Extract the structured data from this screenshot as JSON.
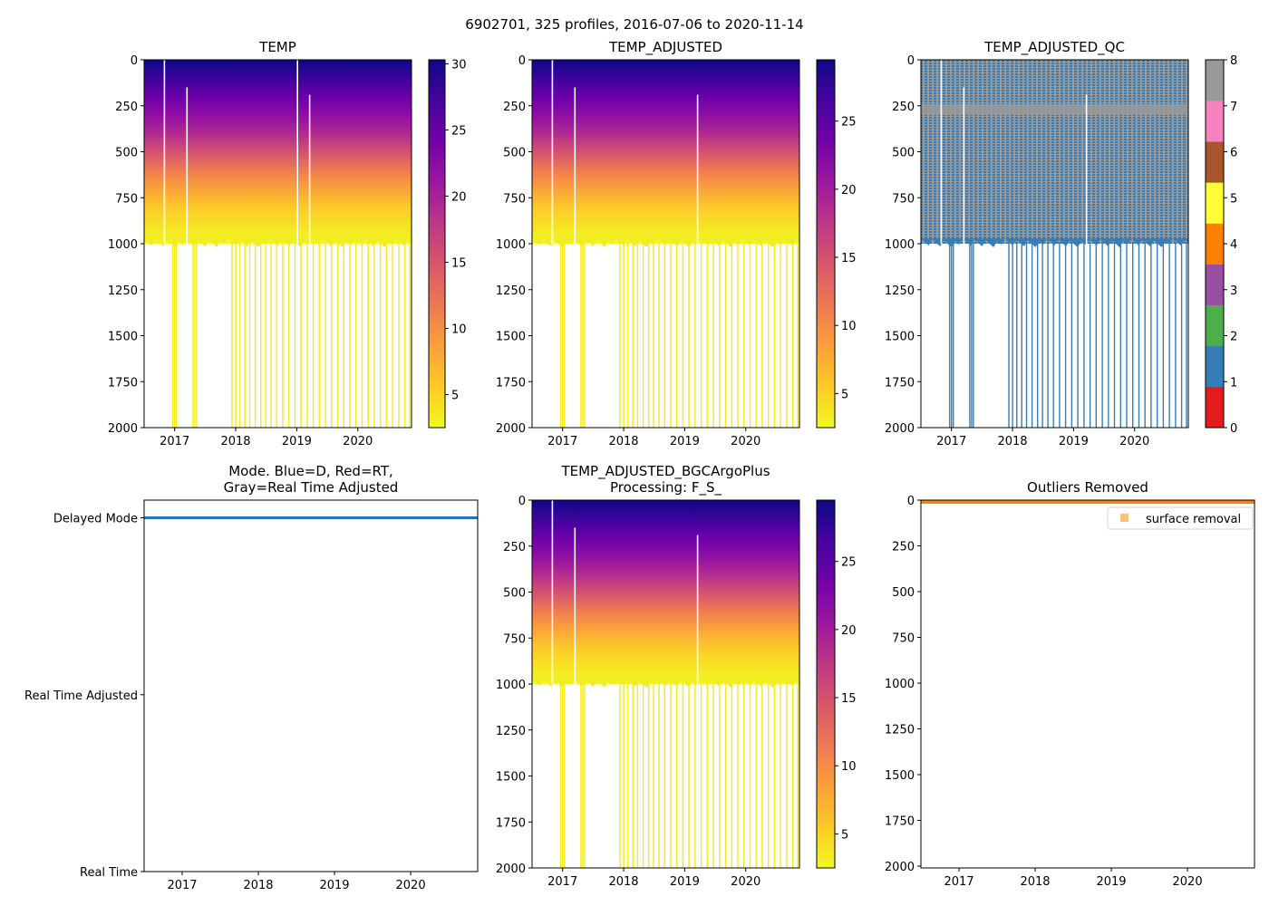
{
  "figure": {
    "suptitle": "6902701, 325 profiles, 2016-07-06 to 2020-11-14"
  },
  "colors": {
    "plasma_r": [
      "#f0f921",
      "#fdca26",
      "#fb9f3a",
      "#ed7953",
      "#d8576b",
      "#bd3786",
      "#9c179e",
      "#7201a8",
      "#46039f",
      "#0d0887"
    ],
    "qc": [
      "#e41a1c",
      "#377eb8",
      "#4daf4a",
      "#984ea3",
      "#ff7f00",
      "#ffff33",
      "#a65628",
      "#f781bf",
      "#999999"
    ],
    "mode_line": "#1f77b4",
    "outlier": "#ff7f0e",
    "outlier_legend": "#fdbf7a"
  },
  "chart_data": [
    {
      "id": "temp",
      "type": "heatmap",
      "title": "TEMP",
      "title2": "",
      "xlim": [
        2016.5,
        2020.88
      ],
      "xticks": [
        2017,
        2018,
        2019,
        2020
      ],
      "xticklabels": [
        "2017",
        "2018",
        "2019",
        "2020"
      ],
      "ylim": [
        2000,
        0
      ],
      "yticks": [
        0,
        250,
        500,
        750,
        1000,
        1250,
        1500,
        1750,
        2000
      ],
      "yticklabels": [
        "0",
        "250",
        "500",
        "750",
        "1000",
        "1250",
        "1500",
        "1750",
        "2000"
      ],
      "colorbar": {
        "vmin": 2.5,
        "vmax": 30.3,
        "ticks": [
          5,
          10,
          15,
          20,
          25,
          30
        ],
        "ticklabels": [
          "5",
          "10",
          "15",
          "20",
          "25",
          "30"
        ]
      },
      "profile_bottom_depth": 1000,
      "deep_profile_times": [
        2016.96,
        2016.99,
        2017.02,
        2017.29,
        2017.32,
        2017.35,
        2017.93,
        2017.99,
        2018.06,
        2018.14,
        2018.22,
        2018.31,
        2018.4,
        2018.48,
        2018.57,
        2018.66,
        2018.76,
        2018.86,
        2018.96,
        2019.06,
        2019.16,
        2019.26,
        2019.36,
        2019.46,
        2019.56,
        2019.66,
        2019.76,
        2019.86,
        2019.96,
        2020.06,
        2020.16,
        2020.26,
        2020.36,
        2020.46,
        2020.56,
        2020.66,
        2020.76,
        2020.84
      ],
      "gap_lines": [
        [
          2016.82,
          0,
          1000
        ],
        [
          2017.19,
          150,
          1000
        ],
        [
          2019.0,
          0,
          1000
        ],
        [
          2019.2,
          190,
          1000
        ]
      ]
    },
    {
      "id": "temp_adjusted",
      "type": "heatmap",
      "title": "TEMP_ADJUSTED",
      "title2": "",
      "xlim": [
        2016.5,
        2020.88
      ],
      "xticks": [
        2017,
        2018,
        2019,
        2020
      ],
      "xticklabels": [
        "2017",
        "2018",
        "2019",
        "2020"
      ],
      "ylim": [
        2000,
        0
      ],
      "yticks": [
        0,
        250,
        500,
        750,
        1000,
        1250,
        1500,
        1750,
        2000
      ],
      "yticklabels": [
        "0",
        "250",
        "500",
        "750",
        "1000",
        "1250",
        "1500",
        "1750",
        "2000"
      ],
      "colorbar": {
        "vmin": 2.5,
        "vmax": 29.5,
        "ticks": [
          5,
          10,
          15,
          20,
          25
        ],
        "ticklabels": [
          "5",
          "10",
          "15",
          "20",
          "25"
        ]
      },
      "profile_bottom_depth": 1000,
      "deep_profile_times": [
        2016.96,
        2016.99,
        2017.02,
        2017.29,
        2017.32,
        2017.35,
        2017.93,
        2017.99,
        2018.06,
        2018.14,
        2018.22,
        2018.31,
        2018.4,
        2018.48,
        2018.57,
        2018.66,
        2018.76,
        2018.86,
        2018.96,
        2019.06,
        2019.16,
        2019.26,
        2019.36,
        2019.46,
        2019.56,
        2019.66,
        2019.76,
        2019.86,
        2019.96,
        2020.06,
        2020.16,
        2020.26,
        2020.36,
        2020.46,
        2020.56,
        2020.66,
        2020.76,
        2020.84
      ],
      "gap_lines": [
        [
          2016.82,
          0,
          1000
        ],
        [
          2017.19,
          150,
          1000
        ],
        [
          2019.2,
          190,
          1000
        ]
      ]
    },
    {
      "id": "temp_adjusted_qc",
      "type": "heatmap",
      "title": "TEMP_ADJUSTED_QC",
      "title2": "",
      "xlim": [
        2016.5,
        2020.88
      ],
      "xticks": [
        2017,
        2018,
        2019,
        2020
      ],
      "xticklabels": [
        "2017",
        "2018",
        "2019",
        "2020"
      ],
      "ylim": [
        2000,
        0
      ],
      "yticks": [
        0,
        250,
        500,
        750,
        1000,
        1250,
        1500,
        1750,
        2000
      ],
      "yticklabels": [
        "0",
        "250",
        "500",
        "750",
        "1000",
        "1250",
        "1500",
        "1750",
        "2000"
      ],
      "colorbar": {
        "vmin": 0,
        "vmax": 8,
        "ticks": [
          0,
          1,
          2,
          3,
          4,
          5,
          6,
          7,
          8
        ],
        "ticklabels": [
          "0",
          "1",
          "2",
          "3",
          "4",
          "5",
          "6",
          "7",
          "8"
        ]
      },
      "qc_values_present": [
        1,
        8
      ],
      "qc8_band_depths": [
        240,
        300
      ],
      "profile_bottom_depth": 1000,
      "deep_profile_times": [
        2016.96,
        2016.99,
        2017.02,
        2017.29,
        2017.32,
        2017.35,
        2017.93,
        2017.99,
        2018.06,
        2018.14,
        2018.22,
        2018.31,
        2018.4,
        2018.48,
        2018.57,
        2018.66,
        2018.76,
        2018.86,
        2018.96,
        2019.06,
        2019.16,
        2019.26,
        2019.36,
        2019.46,
        2019.56,
        2019.66,
        2019.76,
        2019.86,
        2019.96,
        2020.06,
        2020.16,
        2020.26,
        2020.36,
        2020.46,
        2020.56,
        2020.66,
        2020.76,
        2020.84
      ],
      "gap_lines": [
        [
          2016.82,
          0,
          1000
        ],
        [
          2017.19,
          150,
          1000
        ],
        [
          2019.2,
          190,
          1000
        ]
      ]
    },
    {
      "id": "mode",
      "type": "line",
      "title": "Mode. Blue=D, Red=RT,",
      "title2": "Gray=Real Time Adjusted",
      "xlim": [
        2016.5,
        2020.88
      ],
      "xticks": [
        2017,
        2018,
        2019,
        2020
      ],
      "xticklabels": [
        "2017",
        "2018",
        "2019",
        "2020"
      ],
      "ylim": [
        0,
        2.1
      ],
      "yticks": [
        2,
        1,
        0
      ],
      "yticklabels": [
        "Delayed Mode",
        "Real Time Adjusted",
        "Real Time"
      ],
      "series": [
        {
          "name": "Delayed Mode",
          "x": [
            2016.5,
            2020.88
          ],
          "y": [
            2,
            2
          ]
        }
      ]
    },
    {
      "id": "temp_adjusted_bgc",
      "type": "heatmap",
      "title": "TEMP_ADJUSTED_BGCArgoPlus",
      "title2": "Processing: F_S_",
      "xlim": [
        2016.5,
        2020.88
      ],
      "xticks": [
        2017,
        2018,
        2019,
        2020
      ],
      "xticklabels": [
        "2017",
        "2018",
        "2019",
        "2020"
      ],
      "ylim": [
        2000,
        0
      ],
      "yticks": [
        0,
        250,
        500,
        750,
        1000,
        1250,
        1500,
        1750,
        2000
      ],
      "yticklabels": [
        "0",
        "250",
        "500",
        "750",
        "1000",
        "1250",
        "1500",
        "1750",
        "2000"
      ],
      "colorbar": {
        "vmin": 2.5,
        "vmax": 29.5,
        "ticks": [
          5,
          10,
          15,
          20,
          25
        ],
        "ticklabels": [
          "5",
          "10",
          "15",
          "20",
          "25"
        ]
      },
      "profile_bottom_depth": 1000,
      "deep_profile_times": [
        2016.96,
        2016.99,
        2017.02,
        2017.29,
        2017.32,
        2017.35,
        2017.93,
        2017.99,
        2018.06,
        2018.14,
        2018.22,
        2018.31,
        2018.4,
        2018.48,
        2018.57,
        2018.66,
        2018.76,
        2018.86,
        2018.96,
        2019.06,
        2019.16,
        2019.26,
        2019.36,
        2019.46,
        2019.56,
        2019.66,
        2019.76,
        2019.86,
        2019.96,
        2020.06,
        2020.16,
        2020.26,
        2020.36,
        2020.46,
        2020.56,
        2020.66,
        2020.76,
        2020.84
      ],
      "gap_lines": [
        [
          2016.82,
          0,
          1000
        ],
        [
          2017.19,
          150,
          1000
        ],
        [
          2019.2,
          190,
          1000
        ]
      ]
    },
    {
      "id": "outliers",
      "type": "scatter",
      "title": "Outliers Removed",
      "title2": "",
      "xlim": [
        2016.5,
        2020.88
      ],
      "xticks": [
        2017,
        2018,
        2019,
        2020
      ],
      "xticklabels": [
        "2017",
        "2018",
        "2019",
        "2020"
      ],
      "ylim": [
        2010,
        0
      ],
      "yticks": [
        0,
        250,
        500,
        750,
        1000,
        1250,
        1500,
        1750,
        2000
      ],
      "yticklabels": [
        "0",
        "250",
        "500",
        "750",
        "1000",
        "1250",
        "1500",
        "1750",
        "2000"
      ],
      "legend": {
        "label": "surface removal",
        "loc": "upper right"
      },
      "series": [
        {
          "name": "surface removal",
          "x_range": [
            2016.5,
            2020.88
          ],
          "depth_range": [
            0,
            20
          ]
        }
      ]
    }
  ]
}
